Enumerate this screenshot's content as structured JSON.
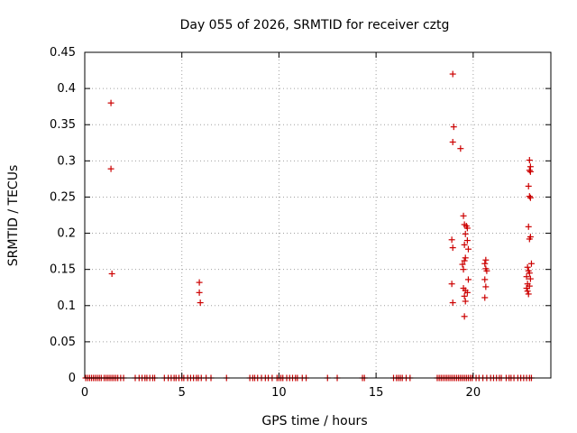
{
  "chart_data": {
    "type": "scatter",
    "title": "Day 055 of 2026, SRMTID for receiver cztg",
    "xlabel": "GPS time / hours",
    "ylabel": "SRMTID / TECUs",
    "xlim": [
      0,
      24
    ],
    "ylim": [
      0,
      0.45
    ],
    "xticks": [
      0,
      5,
      10,
      15,
      20
    ],
    "xtick_labels": [
      "0",
      "5",
      "10",
      "15",
      "20"
    ],
    "yticks": [
      0,
      0.05,
      0.1,
      0.15,
      0.2,
      0.25,
      0.3,
      0.35,
      0.4,
      0.45
    ],
    "ytick_labels": [
      "0",
      "0.05",
      "0.1",
      "0.15",
      "0.2",
      "0.25",
      "0.3",
      "0.35",
      "0.4",
      "0.45"
    ],
    "grid": true,
    "marker": "+",
    "color": "#cc0000",
    "series": [
      {
        "points": [
          [
            1.35,
            0.38
          ],
          [
            1.35,
            0.289
          ],
          [
            1.4,
            0.144
          ],
          [
            5.9,
            0.132
          ],
          [
            5.9,
            0.118
          ],
          [
            5.95,
            0.104
          ],
          [
            18.95,
            0.42
          ],
          [
            19.0,
            0.347
          ],
          [
            18.95,
            0.326
          ],
          [
            19.35,
            0.317
          ],
          [
            18.9,
            0.191
          ],
          [
            18.95,
            0.18
          ],
          [
            18.9,
            0.13
          ],
          [
            18.95,
            0.104
          ],
          [
            19.5,
            0.224
          ],
          [
            19.55,
            0.212
          ],
          [
            19.65,
            0.21
          ],
          [
            19.7,
            0.207
          ],
          [
            19.6,
            0.199
          ],
          [
            19.7,
            0.19
          ],
          [
            19.55,
            0.184
          ],
          [
            19.75,
            0.178
          ],
          [
            19.6,
            0.166
          ],
          [
            19.55,
            0.162
          ],
          [
            19.45,
            0.157
          ],
          [
            19.5,
            0.15
          ],
          [
            19.75,
            0.136
          ],
          [
            19.5,
            0.124
          ],
          [
            19.6,
            0.121
          ],
          [
            19.7,
            0.118
          ],
          [
            19.55,
            0.113
          ],
          [
            19.6,
            0.106
          ],
          [
            19.55,
            0.085
          ],
          [
            20.65,
            0.163
          ],
          [
            20.6,
            0.158
          ],
          [
            20.65,
            0.151
          ],
          [
            20.7,
            0.148
          ],
          [
            20.6,
            0.136
          ],
          [
            20.65,
            0.126
          ],
          [
            20.6,
            0.111
          ],
          [
            22.9,
            0.301
          ],
          [
            22.95,
            0.292
          ],
          [
            22.9,
            0.287
          ],
          [
            22.95,
            0.285
          ],
          [
            22.85,
            0.265
          ],
          [
            22.9,
            0.251
          ],
          [
            22.95,
            0.249
          ],
          [
            22.85,
            0.209
          ],
          [
            22.95,
            0.195
          ],
          [
            22.9,
            0.192
          ],
          [
            23.0,
            0.158
          ],
          [
            22.8,
            0.153
          ],
          [
            22.85,
            0.148
          ],
          [
            22.9,
            0.145
          ],
          [
            22.75,
            0.14
          ],
          [
            22.95,
            0.137
          ],
          [
            22.8,
            0.13
          ],
          [
            22.9,
            0.127
          ],
          [
            22.75,
            0.124
          ],
          [
            22.8,
            0.12
          ],
          [
            22.85,
            0.116
          ],
          [
            0.05,
            0
          ],
          [
            0.15,
            0
          ],
          [
            0.25,
            0
          ],
          [
            0.35,
            0
          ],
          [
            0.45,
            0
          ],
          [
            0.55,
            0
          ],
          [
            0.65,
            0
          ],
          [
            0.75,
            0
          ],
          [
            0.85,
            0
          ],
          [
            1.0,
            0
          ],
          [
            1.1,
            0
          ],
          [
            1.2,
            0
          ],
          [
            1.3,
            0
          ],
          [
            1.4,
            0
          ],
          [
            1.5,
            0
          ],
          [
            1.6,
            0
          ],
          [
            1.7,
            0
          ],
          [
            1.85,
            0
          ],
          [
            2.0,
            0
          ],
          [
            2.6,
            0
          ],
          [
            2.8,
            0
          ],
          [
            2.95,
            0
          ],
          [
            3.1,
            0
          ],
          [
            3.2,
            0
          ],
          [
            3.35,
            0
          ],
          [
            3.5,
            0
          ],
          [
            3.6,
            0
          ],
          [
            4.1,
            0
          ],
          [
            4.3,
            0
          ],
          [
            4.45,
            0
          ],
          [
            4.6,
            0
          ],
          [
            4.7,
            0
          ],
          [
            4.85,
            0
          ],
          [
            5.0,
            0
          ],
          [
            5.1,
            0
          ],
          [
            5.3,
            0
          ],
          [
            5.45,
            0
          ],
          [
            5.6,
            0
          ],
          [
            5.75,
            0
          ],
          [
            5.85,
            0
          ],
          [
            6.0,
            0
          ],
          [
            6.25,
            0
          ],
          [
            6.5,
            0
          ],
          [
            7.3,
            0
          ],
          [
            8.5,
            0
          ],
          [
            8.65,
            0
          ],
          [
            8.75,
            0
          ],
          [
            8.9,
            0
          ],
          [
            9.1,
            0
          ],
          [
            9.3,
            0
          ],
          [
            9.45,
            0
          ],
          [
            9.65,
            0
          ],
          [
            9.9,
            0
          ],
          [
            10.0,
            0
          ],
          [
            10.1,
            0
          ],
          [
            10.2,
            0
          ],
          [
            10.4,
            0
          ],
          [
            10.55,
            0
          ],
          [
            10.7,
            0
          ],
          [
            10.85,
            0
          ],
          [
            10.95,
            0
          ],
          [
            11.2,
            0
          ],
          [
            11.4,
            0
          ],
          [
            12.5,
            0
          ],
          [
            13.0,
            0
          ],
          [
            14.3,
            0
          ],
          [
            14.4,
            0
          ],
          [
            15.9,
            0
          ],
          [
            16.05,
            0
          ],
          [
            16.15,
            0
          ],
          [
            16.25,
            0
          ],
          [
            16.35,
            0
          ],
          [
            16.55,
            0
          ],
          [
            16.75,
            0
          ],
          [
            18.15,
            0
          ],
          [
            18.25,
            0
          ],
          [
            18.35,
            0
          ],
          [
            18.45,
            0
          ],
          [
            18.55,
            0
          ],
          [
            18.65,
            0
          ],
          [
            18.75,
            0
          ],
          [
            18.85,
            0
          ],
          [
            18.95,
            0
          ],
          [
            19.05,
            0
          ],
          [
            19.15,
            0
          ],
          [
            19.25,
            0
          ],
          [
            19.35,
            0
          ],
          [
            19.45,
            0
          ],
          [
            19.55,
            0
          ],
          [
            19.65,
            0
          ],
          [
            19.75,
            0
          ],
          [
            19.85,
            0
          ],
          [
            19.95,
            0
          ],
          [
            20.15,
            0
          ],
          [
            20.3,
            0
          ],
          [
            20.5,
            0
          ],
          [
            20.7,
            0
          ],
          [
            20.9,
            0
          ],
          [
            21.05,
            0
          ],
          [
            21.2,
            0
          ],
          [
            21.35,
            0
          ],
          [
            21.45,
            0
          ],
          [
            21.7,
            0
          ],
          [
            21.85,
            0
          ],
          [
            21.95,
            0
          ],
          [
            22.1,
            0
          ],
          [
            22.3,
            0
          ],
          [
            22.45,
            0
          ],
          [
            22.6,
            0
          ],
          [
            22.75,
            0
          ],
          [
            22.9,
            0
          ],
          [
            23.0,
            0
          ]
        ]
      }
    ]
  }
}
